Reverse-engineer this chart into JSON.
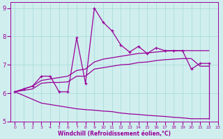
{
  "xlabel": "Windchill (Refroidissement éolien,°C)",
  "background_color": "#d0eeee",
  "grid_color": "#aadddd",
  "line_color": "#990099",
  "xlim": [
    -0.5,
    23
  ],
  "ylim": [
    5,
    9.2
  ],
  "xticks": [
    0,
    1,
    2,
    3,
    4,
    5,
    6,
    7,
    8,
    9,
    10,
    11,
    12,
    13,
    14,
    15,
    16,
    17,
    18,
    19,
    20,
    21,
    22,
    23
  ],
  "yticks": [
    5,
    6,
    7,
    8,
    9
  ],
  "jagged_x": [
    0,
    1,
    2,
    3,
    4,
    5,
    6,
    7,
    8,
    9,
    10,
    11,
    12,
    13,
    14,
    15,
    16,
    17,
    18,
    19,
    20,
    21,
    22
  ],
  "jagged_y": [
    6.05,
    6.15,
    6.25,
    6.6,
    6.6,
    6.05,
    6.05,
    7.95,
    6.35,
    9.0,
    8.5,
    8.2,
    7.7,
    7.45,
    7.65,
    7.4,
    7.6,
    7.5,
    7.5,
    7.5,
    6.85,
    7.05,
    7.05
  ],
  "upper_line_x": [
    0,
    1,
    2,
    3,
    4,
    5,
    6,
    7,
    8,
    9,
    10,
    11,
    12,
    13,
    14,
    15,
    16,
    17,
    18,
    19,
    20,
    21,
    22
  ],
  "upper_line_y": [
    6.05,
    6.15,
    6.25,
    6.45,
    6.5,
    6.55,
    6.6,
    6.8,
    6.85,
    7.1,
    7.2,
    7.25,
    7.3,
    7.35,
    7.4,
    7.42,
    7.45,
    7.48,
    7.5,
    7.5,
    7.5,
    7.5,
    7.5
  ],
  "lower_line_x": [
    0,
    3,
    4,
    5,
    6,
    7,
    8,
    9,
    10,
    11,
    12,
    13,
    14,
    15,
    16,
    17,
    18,
    19,
    20,
    21,
    22
  ],
  "lower_line_y": [
    6.05,
    5.65,
    5.6,
    5.55,
    5.5,
    5.45,
    5.42,
    5.4,
    5.37,
    5.35,
    5.3,
    5.27,
    5.25,
    5.22,
    5.2,
    5.18,
    5.15,
    5.13,
    5.1,
    5.1,
    5.1
  ],
  "mid_line_x": [
    0,
    1,
    2,
    3,
    4,
    5,
    6,
    7,
    8,
    9,
    10,
    11,
    12,
    13,
    14,
    15,
    16,
    17,
    18,
    19,
    20,
    21,
    22
  ],
  "mid_line_y": [
    6.05,
    6.1,
    6.15,
    6.35,
    6.38,
    6.38,
    6.4,
    6.6,
    6.6,
    6.85,
    6.9,
    6.95,
    7.0,
    7.02,
    7.08,
    7.1,
    7.15,
    7.18,
    7.2,
    7.22,
    7.22,
    6.95,
    6.95
  ],
  "close_line_x": [
    22,
    22
  ],
  "close_line_y": [
    5.1,
    7.05
  ]
}
